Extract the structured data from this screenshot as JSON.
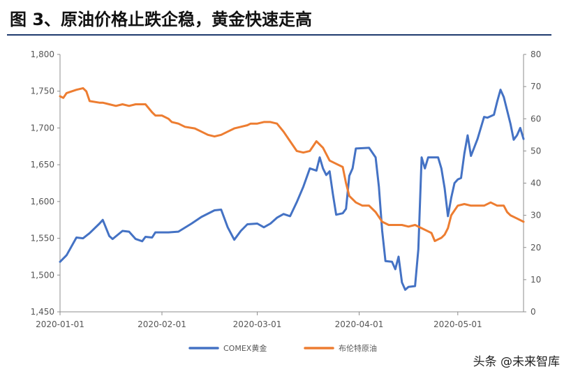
{
  "title": "图 3、原油价格止跌企稳，黄金快速走高",
  "watermark": "头条 @未来智库",
  "chart_data": {
    "type": "line",
    "x_ticks": [
      "2020-01-01",
      "2020-02-01",
      "2020-03-01",
      "2020-04-01",
      "2020-05-01"
    ],
    "x_range": [
      "2020-01-01",
      "2020-05-21"
    ],
    "y_left": {
      "ticks": [
        "1,800",
        "1,750",
        "1,700",
        "1,650",
        "1,600",
        "1,550",
        "1,500",
        "1,450"
      ],
      "ylim": [
        1450,
        1800
      ]
    },
    "y_right": {
      "ticks": [
        "80",
        "70",
        "60",
        "50",
        "40",
        "30",
        "20",
        "10",
        "0"
      ],
      "ylim": [
        0,
        80
      ]
    },
    "grid": false,
    "legend_position": "bottom",
    "series": [
      {
        "name": "COMEX黄金",
        "axis": "left",
        "color": "#4472c4",
        "points": [
          [
            "2020-01-01",
            1518
          ],
          [
            "2020-01-03",
            1527
          ],
          [
            "2020-01-06",
            1551
          ],
          [
            "2020-01-08",
            1550
          ],
          [
            "2020-01-10",
            1557
          ],
          [
            "2020-01-13",
            1570
          ],
          [
            "2020-01-14",
            1575
          ],
          [
            "2020-01-16",
            1553
          ],
          [
            "2020-01-17",
            1549
          ],
          [
            "2020-01-20",
            1560
          ],
          [
            "2020-01-22",
            1559
          ],
          [
            "2020-01-24",
            1549
          ],
          [
            "2020-01-26",
            1546
          ],
          [
            "2020-01-27",
            1552
          ],
          [
            "2020-01-29",
            1551
          ],
          [
            "2020-01-30",
            1558
          ],
          [
            "2020-02-03",
            1558
          ],
          [
            "2020-02-06",
            1559
          ],
          [
            "2020-02-10",
            1570
          ],
          [
            "2020-02-13",
            1579
          ],
          [
            "2020-02-17",
            1588
          ],
          [
            "2020-02-19",
            1589
          ],
          [
            "2020-02-21",
            1565
          ],
          [
            "2020-02-23",
            1548
          ],
          [
            "2020-02-25",
            1560
          ],
          [
            "2020-02-27",
            1569
          ],
          [
            "2020-03-01",
            1570
          ],
          [
            "2020-03-03",
            1565
          ],
          [
            "2020-03-05",
            1570
          ],
          [
            "2020-03-07",
            1578
          ],
          [
            "2020-03-09",
            1583
          ],
          [
            "2020-03-11",
            1580
          ],
          [
            "2020-03-13",
            1599
          ],
          [
            "2020-03-15",
            1620
          ],
          [
            "2020-03-17",
            1645
          ],
          [
            "2020-03-19",
            1642
          ],
          [
            "2020-03-20",
            1660
          ],
          [
            "2020-03-21",
            1645
          ],
          [
            "2020-03-22",
            1636
          ],
          [
            "2020-03-23",
            1641
          ],
          [
            "2020-03-24",
            1610
          ],
          [
            "2020-03-25",
            1582
          ],
          [
            "2020-03-27",
            1584
          ],
          [
            "2020-03-28",
            1590
          ],
          [
            "2020-03-29",
            1635
          ],
          [
            "2020-03-30",
            1645
          ],
          [
            "2020-03-31",
            1672
          ],
          [
            "2020-04-04",
            1673
          ],
          [
            "2020-04-06",
            1660
          ],
          [
            "2020-04-07",
            1620
          ],
          [
            "2020-04-08",
            1560
          ],
          [
            "2020-04-09",
            1519
          ],
          [
            "2020-04-11",
            1518
          ],
          [
            "2020-04-12",
            1508
          ],
          [
            "2020-04-13",
            1525
          ],
          [
            "2020-04-14",
            1490
          ],
          [
            "2020-04-15",
            1480
          ],
          [
            "2020-04-16",
            1484
          ],
          [
            "2020-04-18",
            1485
          ],
          [
            "2020-04-19",
            1535
          ],
          [
            "2020-04-20",
            1660
          ],
          [
            "2020-04-21",
            1645
          ],
          [
            "2020-04-22",
            1660
          ],
          [
            "2020-04-25",
            1660
          ],
          [
            "2020-04-26",
            1645
          ],
          [
            "2020-04-27",
            1618
          ],
          [
            "2020-04-28",
            1580
          ],
          [
            "2020-04-29",
            1605
          ],
          [
            "2020-04-30",
            1625
          ],
          [
            "2020-05-01",
            1630
          ],
          [
            "2020-05-02",
            1632
          ],
          [
            "2020-05-03",
            1665
          ],
          [
            "2020-05-04",
            1690
          ],
          [
            "2020-05-05",
            1662
          ],
          [
            "2020-05-07",
            1685
          ],
          [
            "2020-05-09",
            1715
          ],
          [
            "2020-05-10",
            1714
          ],
          [
            "2020-05-12",
            1718
          ],
          [
            "2020-05-13",
            1736
          ],
          [
            "2020-05-14",
            1752
          ],
          [
            "2020-05-15",
            1742
          ],
          [
            "2020-05-17",
            1706
          ],
          [
            "2020-05-18",
            1684
          ],
          [
            "2020-05-19",
            1690
          ],
          [
            "2020-05-20",
            1700
          ],
          [
            "2020-05-21",
            1685
          ]
        ]
      },
      {
        "name": "布伦特原油",
        "axis": "right",
        "color": "#ed7d31",
        "points": [
          [
            "2020-01-01",
            67
          ],
          [
            "2020-01-02",
            66.5
          ],
          [
            "2020-01-03",
            68
          ],
          [
            "2020-01-06",
            69
          ],
          [
            "2020-01-08",
            69.5
          ],
          [
            "2020-01-09",
            68.5
          ],
          [
            "2020-01-10",
            65.5
          ],
          [
            "2020-01-13",
            65
          ],
          [
            "2020-01-14",
            65
          ],
          [
            "2020-01-16",
            64.5
          ],
          [
            "2020-01-18",
            64
          ],
          [
            "2020-01-20",
            64.5
          ],
          [
            "2020-01-22",
            64
          ],
          [
            "2020-01-24",
            64.5
          ],
          [
            "2020-01-27",
            64.5
          ],
          [
            "2020-01-29",
            62
          ],
          [
            "2020-01-30",
            61
          ],
          [
            "2020-02-01",
            61
          ],
          [
            "2020-02-03",
            60
          ],
          [
            "2020-02-04",
            59
          ],
          [
            "2020-02-06",
            58.5
          ],
          [
            "2020-02-08",
            57.5
          ],
          [
            "2020-02-11",
            57
          ],
          [
            "2020-02-13",
            56
          ],
          [
            "2020-02-15",
            55
          ],
          [
            "2020-02-17",
            54.5
          ],
          [
            "2020-02-19",
            55
          ],
          [
            "2020-02-21",
            56
          ],
          [
            "2020-02-23",
            57
          ],
          [
            "2020-02-25",
            57.5
          ],
          [
            "2020-02-27",
            58
          ],
          [
            "2020-02-28",
            58.5
          ],
          [
            "2020-03-01",
            58.5
          ],
          [
            "2020-03-03",
            59
          ],
          [
            "2020-03-05",
            59
          ],
          [
            "2020-03-07",
            58.5
          ],
          [
            "2020-03-09",
            56
          ],
          [
            "2020-03-11",
            53
          ],
          [
            "2020-03-13",
            50
          ],
          [
            "2020-03-15",
            49.5
          ],
          [
            "2020-03-17",
            50
          ],
          [
            "2020-03-19",
            53
          ],
          [
            "2020-03-21",
            51
          ],
          [
            "2020-03-23",
            47
          ],
          [
            "2020-03-25",
            46
          ],
          [
            "2020-03-27",
            45
          ],
          [
            "2020-03-28",
            40
          ],
          [
            "2020-03-29",
            36
          ],
          [
            "2020-03-31",
            34
          ],
          [
            "2020-04-02",
            33
          ],
          [
            "2020-04-04",
            33
          ],
          [
            "2020-04-06",
            31
          ],
          [
            "2020-04-08",
            28
          ],
          [
            "2020-04-10",
            27
          ],
          [
            "2020-04-12",
            27
          ],
          [
            "2020-04-14",
            27
          ],
          [
            "2020-04-16",
            26.5
          ],
          [
            "2020-04-18",
            27
          ],
          [
            "2020-04-20",
            26
          ],
          [
            "2020-04-22",
            25
          ],
          [
            "2020-04-23",
            24.5
          ],
          [
            "2020-04-24",
            22
          ],
          [
            "2020-04-25",
            22.5
          ],
          [
            "2020-04-26",
            23
          ],
          [
            "2020-04-27",
            24
          ],
          [
            "2020-04-28",
            26
          ],
          [
            "2020-04-29",
            30
          ],
          [
            "2020-05-01",
            33
          ],
          [
            "2020-05-03",
            33.5
          ],
          [
            "2020-05-05",
            33
          ],
          [
            "2020-05-07",
            33
          ],
          [
            "2020-05-09",
            33
          ],
          [
            "2020-05-11",
            34
          ],
          [
            "2020-05-13",
            33
          ],
          [
            "2020-05-15",
            33
          ],
          [
            "2020-05-16",
            31
          ],
          [
            "2020-05-17",
            30
          ],
          [
            "2020-05-19",
            29
          ],
          [
            "2020-05-21",
            28
          ]
        ]
      }
    ]
  }
}
